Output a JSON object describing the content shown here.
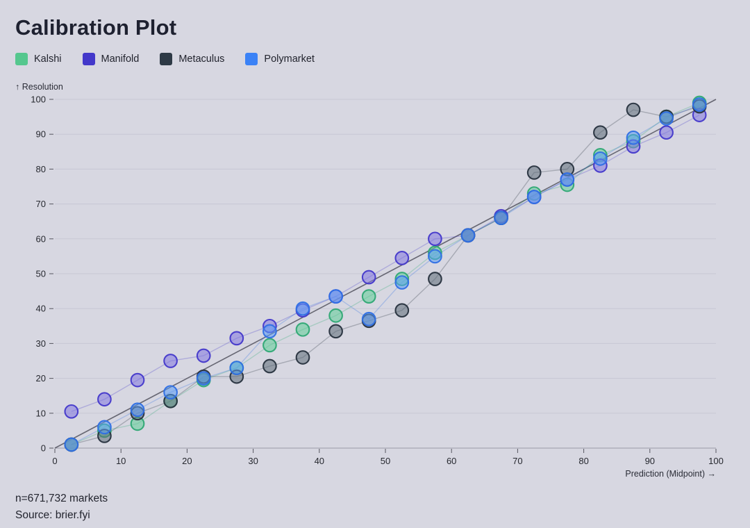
{
  "page": {
    "title": "Calibration Plot",
    "background_color": "#d7d7e1"
  },
  "legend": [
    {
      "label": "Kalshi",
      "color": "#55c78e"
    },
    {
      "label": "Manifold",
      "color": "#4338ca"
    },
    {
      "label": "Metaculus",
      "color": "#2e3a46"
    },
    {
      "label": "Polymarket",
      "color": "#3b82f6"
    }
  ],
  "footer": {
    "sample_size": "n=671,732 markets",
    "source": "Source: brier.fyi"
  },
  "chart_data": {
    "type": "scatter",
    "title": "Calibration Plot",
    "xlabel": "Prediction (Midpoint) →",
    "ylabel": "↑ Resolution",
    "xlim": [
      0,
      100
    ],
    "ylim": [
      0,
      100
    ],
    "x_ticks": [
      0,
      10,
      20,
      30,
      40,
      50,
      60,
      70,
      80,
      90,
      100
    ],
    "y_ticks": [
      0,
      10,
      20,
      30,
      40,
      50,
      60,
      70,
      80,
      90,
      100
    ],
    "grid": "horizontal",
    "legend_position": "top-left",
    "reference_line": {
      "x1": 0,
      "y1": 0,
      "x2": 100,
      "y2": 100,
      "color": "#52525e"
    },
    "x": [
      2.5,
      7.5,
      12.5,
      17.5,
      22.5,
      27.5,
      32.5,
      37.5,
      42.5,
      47.5,
      52.5,
      57.5,
      62.5,
      67.5,
      72.5,
      77.5,
      82.5,
      87.5,
      92.5,
      97.5
    ],
    "series": [
      {
        "name": "Kalshi",
        "fill": "#5fcd97",
        "stroke": "#2fa874",
        "values": [
          1,
          5,
          7,
          13.5,
          19.5,
          23,
          29.5,
          34,
          38,
          43.5,
          48.5,
          56,
          61,
          66,
          73,
          75.5,
          84,
          88,
          95,
          99
        ]
      },
      {
        "name": "Manifold",
        "fill": "#8276e0",
        "stroke": "#4338ca",
        "values": [
          10.5,
          14,
          19.5,
          25,
          26.5,
          31.5,
          35,
          39.5,
          43.5,
          49,
          54.5,
          60,
          61,
          66.5,
          72,
          77,
          81,
          86.5,
          90.5,
          95.5
        ]
      },
      {
        "name": "Metaculus",
        "fill": "#5d6c79",
        "stroke": "#27323e",
        "values": [
          1,
          3.5,
          10,
          13.5,
          20.5,
          20.5,
          23.5,
          26,
          33.5,
          36.5,
          39.5,
          48.5,
          61,
          66,
          79,
          80,
          90.5,
          97,
          95,
          98
        ]
      },
      {
        "name": "Polymarket",
        "fill": "#5b9cf6",
        "stroke": "#2f6fe4",
        "values": [
          1,
          6,
          11,
          16,
          20,
          23,
          33.5,
          40,
          43.5,
          37,
          47.5,
          55,
          61,
          66,
          72,
          77,
          83,
          89,
          94.5,
          98.5
        ]
      }
    ]
  }
}
